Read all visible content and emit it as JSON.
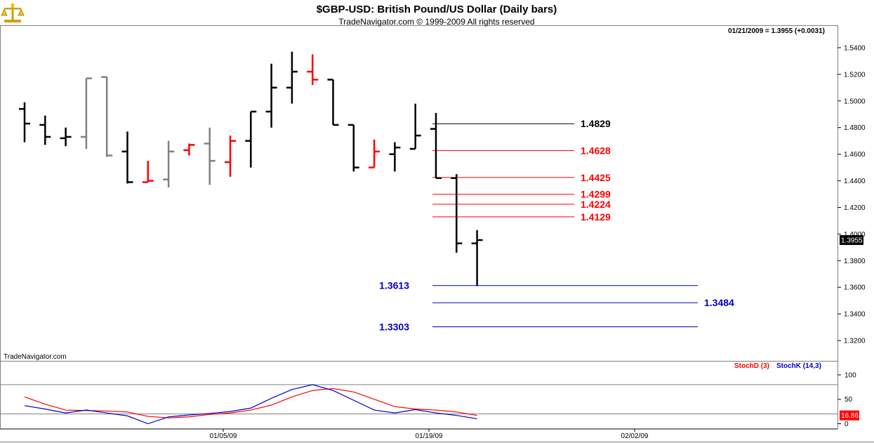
{
  "header": {
    "title": "$GBP-USD:  British Pound/US Dollar  (Daily bars)",
    "subtitle": "TradeNavigator.com © 1999-2009 All rights reserved",
    "readout": "01/21/2009 = 1.3955 (+0.0031)",
    "logo_icon": "scales-icon"
  },
  "watermark": "TradeNavigator.com",
  "chart_data": {
    "type": "ohlc",
    "price_axis": {
      "ylim": [
        1.31,
        1.55
      ],
      "ticks": [
        "1.5400",
        "1.5200",
        "1.5000",
        "1.4800",
        "1.4600",
        "1.4400",
        "1.4200",
        "1.4000",
        "1.3800",
        "1.3600",
        "1.3400",
        "1.3200"
      ],
      "last_price_label": "1.3955"
    },
    "x_tick_labels": [
      {
        "index": 10,
        "label": "01/05/09"
      },
      {
        "index": 20,
        "label": "01/19/09"
      },
      {
        "index": 30,
        "label": "02/02/09"
      }
    ],
    "bars": [
      {
        "o": 1.494,
        "h": 1.499,
        "l": 1.469,
        "c": 1.483,
        "color": "#000000"
      },
      {
        "o": 1.482,
        "h": 1.489,
        "l": 1.467,
        "c": 1.473,
        "color": "#000000"
      },
      {
        "o": 1.472,
        "h": 1.48,
        "l": 1.466,
        "c": 1.473,
        "color": "#000000"
      },
      {
        "o": 1.473,
        "h": 1.517,
        "l": 1.464,
        "c": 1.517,
        "color": "#808080"
      },
      {
        "o": 1.518,
        "h": 1.518,
        "l": 1.458,
        "c": 1.459,
        "color": "#808080"
      },
      {
        "o": 1.462,
        "h": 1.477,
        "l": 1.438,
        "c": 1.439,
        "color": "#000000"
      },
      {
        "o": 1.439,
        "h": 1.455,
        "l": 1.439,
        "c": 1.44,
        "color": "#ff0000"
      },
      {
        "o": 1.441,
        "h": 1.47,
        "l": 1.435,
        "c": 1.462,
        "color": "#808080"
      },
      {
        "o": 1.463,
        "h": 1.468,
        "l": 1.459,
        "c": 1.467,
        "color": "#ff0000"
      },
      {
        "o": 1.468,
        "h": 1.48,
        "l": 1.437,
        "c": 1.455,
        "color": "#808080"
      },
      {
        "o": 1.454,
        "h": 1.474,
        "l": 1.443,
        "c": 1.47,
        "color": "#ff0000"
      },
      {
        "o": 1.47,
        "h": 1.492,
        "l": 1.45,
        "c": 1.492,
        "color": "#000000"
      },
      {
        "o": 1.492,
        "h": 1.528,
        "l": 1.48,
        "c": 1.51,
        "color": "#000000"
      },
      {
        "o": 1.51,
        "h": 1.537,
        "l": 1.498,
        "c": 1.522,
        "color": "#000000"
      },
      {
        "o": 1.522,
        "h": 1.535,
        "l": 1.512,
        "c": 1.516,
        "color": "#ff0000"
      },
      {
        "o": 1.516,
        "h": 1.516,
        "l": 1.482,
        "c": 1.482,
        "color": "#000000"
      },
      {
        "o": 1.482,
        "h": 1.482,
        "l": 1.447,
        "c": 1.45,
        "color": "#000000"
      },
      {
        "o": 1.45,
        "h": 1.471,
        "l": 1.45,
        "c": 1.462,
        "color": "#ff0000"
      },
      {
        "o": 1.46,
        "h": 1.469,
        "l": 1.447,
        "c": 1.465,
        "color": "#000000"
      },
      {
        "o": 1.464,
        "h": 1.498,
        "l": 1.464,
        "c": 1.474,
        "color": "#000000"
      },
      {
        "o": 1.479,
        "h": 1.491,
        "l": 1.442,
        "c": 1.442,
        "color": "#000000"
      },
      {
        "o": 1.442,
        "h": 1.445,
        "l": 1.386,
        "c": 1.393,
        "color": "#000000"
      },
      {
        "o": 1.393,
        "h": 1.403,
        "l": 1.361,
        "c": 1.3955,
        "color": "#000000"
      }
    ],
    "levels": [
      {
        "value": 1.4829,
        "label": "1.4829",
        "color": "#000000",
        "from": 20,
        "to": 28,
        "label_at": "right"
      },
      {
        "value": 1.4628,
        "label": "1.4628",
        "color": "#ff0000",
        "from": 20,
        "to": 28,
        "label_at": "right"
      },
      {
        "value": 1.4425,
        "label": "1.4425",
        "color": "#ff0000",
        "from": 20,
        "to": 28,
        "label_at": "right"
      },
      {
        "value": 1.4299,
        "label": "1.4299",
        "color": "#ff0000",
        "from": 20,
        "to": 28,
        "label_at": "right"
      },
      {
        "value": 1.4224,
        "label": "1.4224",
        "color": "#ff0000",
        "from": 20,
        "to": 28,
        "label_at": "right"
      },
      {
        "value": 1.4129,
        "label": "1.4129",
        "color": "#ff0000",
        "from": 20,
        "to": 28,
        "label_at": "right"
      },
      {
        "value": 1.3613,
        "label": "1.3613",
        "color": "#0000cc",
        "from": 20,
        "to": 34,
        "label_at": "left"
      },
      {
        "value": 1.3484,
        "label": "1.3484",
        "color": "#0000cc",
        "from": 20,
        "to": 34,
        "label_at": "right"
      },
      {
        "value": 1.3303,
        "label": "1.3303",
        "color": "#0000cc",
        "from": 20,
        "to": 34,
        "label_at": "left"
      }
    ],
    "stochastic": {
      "ylim": [
        -5,
        110
      ],
      "ticks": [
        "100",
        "50",
        "0"
      ],
      "ref_levels": [
        80,
        20
      ],
      "last_value_label": "16.86",
      "series": [
        {
          "name": "StochD (3)",
          "color": "#ff0000",
          "values": [
            55,
            40,
            28,
            27,
            26,
            24,
            15,
            12,
            14,
            19,
            22,
            28,
            38,
            55,
            68,
            72,
            65,
            50,
            35,
            30,
            28,
            24,
            17
          ]
        },
        {
          "name": "StochK (14,3)",
          "color": "#0000cc",
          "values": [
            37,
            30,
            22,
            28,
            22,
            16,
            0,
            14,
            18,
            21,
            25,
            32,
            52,
            70,
            80,
            68,
            48,
            28,
            22,
            29,
            22,
            17,
            10
          ]
        }
      ]
    }
  }
}
